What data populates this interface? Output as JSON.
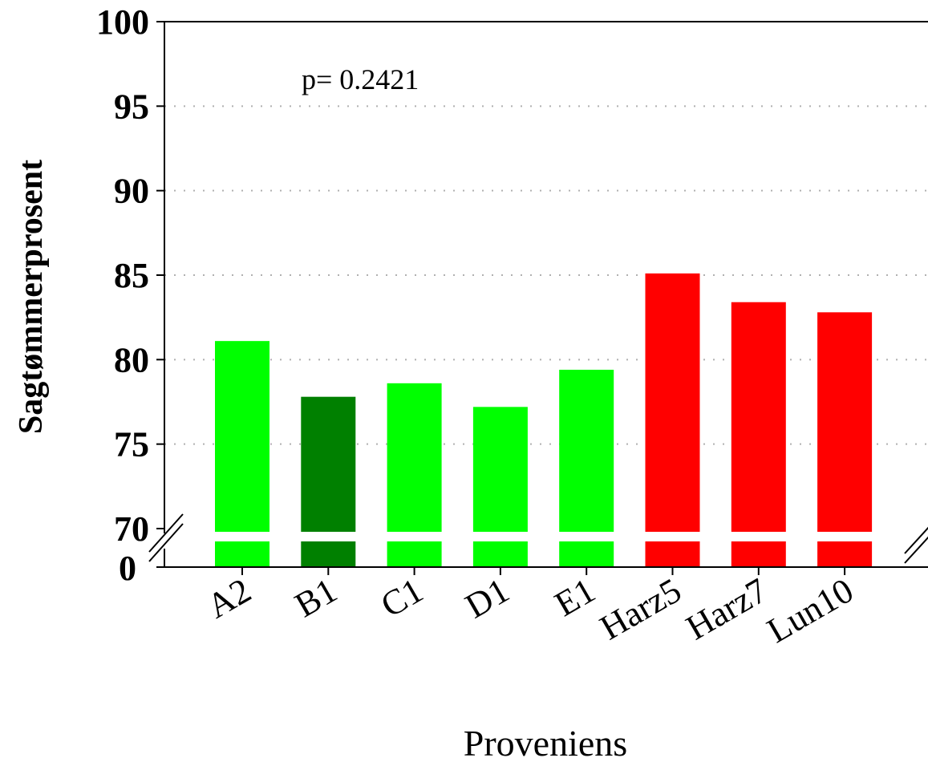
{
  "chart_data": {
    "type": "bar",
    "xlabel": "Proveniens",
    "ylabel": "Sagtømmerprosent",
    "categories": [
      "A2",
      "B1",
      "C1",
      "D1",
      "E1",
      "Harz5",
      "Harz7",
      "Lun10"
    ],
    "values": [
      81.1,
      77.8,
      78.6,
      77.2,
      79.4,
      85.1,
      83.4,
      82.8
    ],
    "colors": [
      "#00ff00",
      "#008000",
      "#00ff00",
      "#00ff00",
      "#00ff00",
      "#ff0000",
      "#ff0000",
      "#ff0000"
    ],
    "ylim": [
      70,
      100
    ],
    "axis_break": {
      "lower_label": "0",
      "upper_start": 70
    },
    "yticks": [
      70,
      75,
      80,
      85,
      90,
      95,
      100
    ],
    "grid": "horizontal dotted",
    "annotation": "p= 0.2421"
  }
}
